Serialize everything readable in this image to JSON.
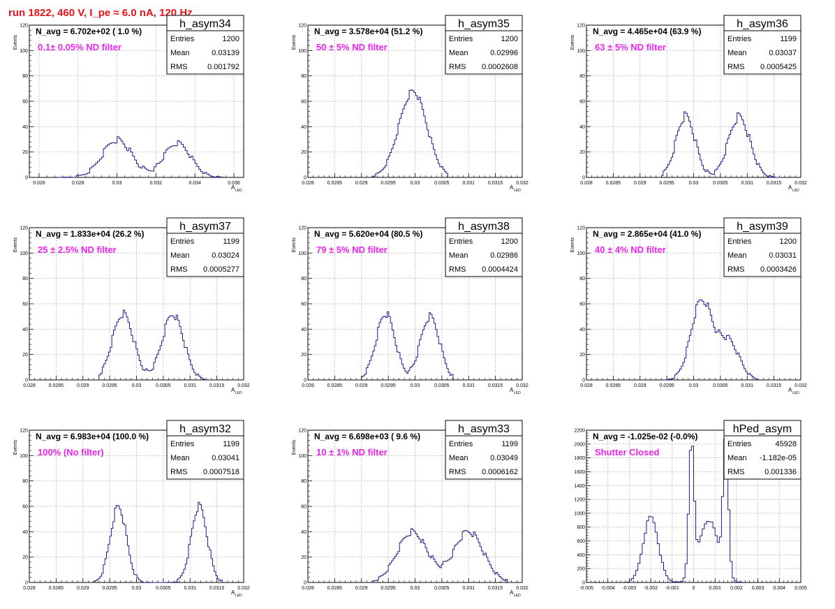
{
  "page": {
    "run_title": "run 1822,   460 V, I_pe ≈ 6.0 nA, 120 Hz"
  },
  "colors": {
    "histogram": "#1c1c8c",
    "title": "#e8121a",
    "filter_label": "#ee22ee",
    "grid": "#9a9a9a",
    "axis": "#000000"
  },
  "chart_data": [
    {
      "type": "histogram",
      "name": "h_asym34",
      "n_avg": "N_avg = 6.702e+02 ( 1.0 %)",
      "filter_label": "0.1± 0.05% ND filter",
      "stats": [
        {
          "label": "Entries",
          "value": "1200"
        },
        {
          "label": "Mean",
          "value": "0.03139"
        },
        {
          "label": "RMS",
          "value": "0.001792"
        }
      ],
      "xlabel": "A",
      "xlabel_sub": "LED",
      "ylabel": "Events",
      "xlim": [
        0.0255,
        0.0365
      ],
      "ylim": [
        0,
        120
      ],
      "x_ticks": [
        "0.026",
        "0.028",
        "0.03",
        "0.032",
        "0.034",
        "0.036"
      ],
      "y_ticks": [
        "0",
        "20",
        "40",
        "60",
        "80",
        "100",
        "120"
      ],
      "grid": true,
      "bin_width": 0.0001,
      "peaks": [
        {
          "center": 0.03,
          "sigma": 0.00075,
          "amp": 30,
          "noise_seed": 1,
          "noise": 6
        },
        {
          "center": 0.0331,
          "sigma": 0.0007,
          "amp": 27,
          "noise_seed": 2,
          "noise": 5
        }
      ],
      "x_range_hist": [
        0.027,
        0.0355
      ]
    },
    {
      "type": "histogram",
      "name": "h_asym35",
      "n_avg": "N_avg = 3.578e+04 (51.2 %)",
      "filter_label": "50 ± 5% ND filter",
      "stats": [
        {
          "label": "Entries",
          "value": "1200"
        },
        {
          "label": "Mean",
          "value": "0.02996"
        },
        {
          "label": "RMS",
          "value": "0.0002608"
        }
      ],
      "xlabel": "A",
      "xlabel_sub": "LED",
      "ylabel": "Events",
      "xlim": [
        0.028,
        0.032
      ],
      "ylim": [
        0,
        120
      ],
      "x_ticks": [
        "0.028",
        "0.0285",
        "0.029",
        "0.0295",
        "0.03",
        "0.0305",
        "0.031",
        "0.0315",
        "0.032"
      ],
      "y_ticks": [
        "0",
        "20",
        "40",
        "60",
        "80",
        "100",
        "120"
      ],
      "grid": true,
      "bin_width": 3e-05,
      "peaks": [
        {
          "center": 0.02996,
          "sigma": 0.00026,
          "amp": 68,
          "noise_seed": 3,
          "noise": 6
        }
      ],
      "x_range_hist": [
        0.0292,
        0.0306
      ]
    },
    {
      "type": "histogram",
      "name": "h_asym36",
      "n_avg": "N_avg = 4.465e+04 (63.9 %)",
      "filter_label": "63 ± 5% ND filter",
      "stats": [
        {
          "label": "Entries",
          "value": "1199"
        },
        {
          "label": "Mean",
          "value": "0.03037"
        },
        {
          "label": "RMS",
          "value": "0.0005425"
        }
      ],
      "xlabel": "A",
      "xlabel_sub": "LED",
      "ylabel": "Events",
      "xlim": [
        0.028,
        0.032
      ],
      "ylim": [
        0,
        120
      ],
      "x_ticks": [
        "0.028",
        "0.0285",
        "0.029",
        "0.0295",
        "0.03",
        "0.0305",
        "0.031",
        "0.0315",
        "0.032"
      ],
      "y_ticks": [
        "0",
        "20",
        "40",
        "60",
        "80",
        "100",
        "120"
      ],
      "grid": true,
      "bin_width": 3e-05,
      "peaks": [
        {
          "center": 0.02985,
          "sigma": 0.00018,
          "amp": 48,
          "noise_seed": 4,
          "noise": 8
        },
        {
          "center": 0.03085,
          "sigma": 0.0002,
          "amp": 48,
          "noise_seed": 5,
          "noise": 8
        }
      ],
      "x_range_hist": [
        0.0294,
        0.0316
      ]
    },
    {
      "type": "histogram",
      "name": "h_asym37",
      "n_avg": "N_avg = 1.833e+04 (26.2 %)",
      "filter_label": "25 ± 2.5% ND filter",
      "stats": [
        {
          "label": "Entries",
          "value": "1199"
        },
        {
          "label": "Mean",
          "value": "0.03024"
        },
        {
          "label": "RMS",
          "value": "0.0005277"
        }
      ],
      "xlabel": "A",
      "xlabel_sub": "LED",
      "ylabel": "Events",
      "xlim": [
        0.028,
        0.032
      ],
      "ylim": [
        0,
        120
      ],
      "x_ticks": [
        "0.028",
        "0.0285",
        "0.029",
        "0.0295",
        "0.03",
        "0.0305",
        "0.031",
        "0.0315",
        "0.032"
      ],
      "y_ticks": [
        "0",
        "20",
        "40",
        "60",
        "80",
        "100",
        "120"
      ],
      "grid": true,
      "bin_width": 3e-05,
      "peaks": [
        {
          "center": 0.02975,
          "sigma": 0.0002,
          "amp": 52,
          "noise_seed": 6,
          "noise": 7
        },
        {
          "center": 0.03068,
          "sigma": 0.0002,
          "amp": 52,
          "noise_seed": 7,
          "noise": 7
        }
      ],
      "x_range_hist": [
        0.0293,
        0.0313
      ]
    },
    {
      "type": "histogram",
      "name": "h_asym38",
      "n_avg": "N_avg = 5.620e+04 (80.5 %)",
      "filter_label": "79 ± 5% ND filter",
      "stats": [
        {
          "label": "Entries",
          "value": "1200"
        },
        {
          "label": "Mean",
          "value": "0.02986"
        },
        {
          "label": "RMS",
          "value": "0.0004424"
        }
      ],
      "xlabel": "A",
      "xlabel_sub": "LED",
      "ylabel": "Events",
      "xlim": [
        0.028,
        0.032
      ],
      "ylim": [
        0,
        120
      ],
      "x_ticks": [
        "0.028",
        "0.0285",
        "0.029",
        "0.0295",
        "0.03",
        "0.0305",
        "0.031",
        "0.0315",
        "0.032"
      ],
      "y_ticks": [
        "0",
        "20",
        "40",
        "60",
        "80",
        "100",
        "120"
      ],
      "grid": true,
      "bin_width": 3e-05,
      "peaks": [
        {
          "center": 0.02945,
          "sigma": 0.00018,
          "amp": 52,
          "noise_seed": 8,
          "noise": 7
        },
        {
          "center": 0.03028,
          "sigma": 0.00018,
          "amp": 50,
          "noise_seed": 9,
          "noise": 7
        }
      ],
      "x_range_hist": [
        0.029,
        0.0307
      ]
    },
    {
      "type": "histogram",
      "name": "h_asym39",
      "n_avg": "N_avg = 2.865e+04 (41.0 %)",
      "filter_label": "40 ± 4% ND filter",
      "stats": [
        {
          "label": "Entries",
          "value": "1200"
        },
        {
          "label": "Mean",
          "value": "0.03031"
        },
        {
          "label": "RMS",
          "value": "0.0003426"
        }
      ],
      "xlabel": "A",
      "xlabel_sub": "LED",
      "ylabel": "Events",
      "xlim": [
        0.028,
        0.032
      ],
      "ylim": [
        0,
        120
      ],
      "x_ticks": [
        "0.028",
        "0.0285",
        "0.029",
        "0.0295",
        "0.03",
        "0.0305",
        "0.031",
        "0.0315",
        "0.032"
      ],
      "y_ticks": [
        "0",
        "20",
        "40",
        "60",
        "80",
        "100",
        "120"
      ],
      "grid": true,
      "bin_width": 3e-05,
      "peaks": [
        {
          "center": 0.03015,
          "sigma": 0.0002,
          "amp": 62,
          "noise_seed": 10,
          "noise": 7
        },
        {
          "center": 0.03065,
          "sigma": 0.0002,
          "amp": 30,
          "noise_seed": 11,
          "noise": 5
        }
      ],
      "x_range_hist": [
        0.0295,
        0.0312
      ]
    },
    {
      "type": "histogram",
      "name": "h_asym32",
      "n_avg": "N_avg = 6.983e+04 (100.0 %)",
      "filter_label": "100% (No filter)",
      "stats": [
        {
          "label": "Entries",
          "value": "1199"
        },
        {
          "label": "Mean",
          "value": "0.03041"
        },
        {
          "label": "RMS",
          "value": "0.0007518"
        }
      ],
      "xlabel": "A",
      "xlabel_sub": "LED",
      "ylabel": "Events",
      "xlim": [
        0.028,
        0.032
      ],
      "ylim": [
        0,
        120
      ],
      "x_ticks": [
        "0.028",
        "0.0285",
        "0.029",
        "0.0295",
        "0.03",
        "0.0305",
        "0.031",
        "0.0315",
        "0.032"
      ],
      "y_ticks": [
        "0",
        "20",
        "40",
        "60",
        "80",
        "100",
        "120"
      ],
      "grid": true,
      "bin_width": 3e-05,
      "peaks": [
        {
          "center": 0.02966,
          "sigma": 0.00015,
          "amp": 60,
          "noise_seed": 12,
          "noise": 7
        },
        {
          "center": 0.03117,
          "sigma": 0.00015,
          "amp": 60,
          "noise_seed": 13,
          "noise": 7
        }
      ],
      "x_range_hist": [
        0.0292,
        0.0316
      ]
    },
    {
      "type": "histogram",
      "name": "h_asym33",
      "n_avg": "N_avg = 6.698e+03 ( 9.6 %)",
      "filter_label": "10 ± 1% ND filter",
      "stats": [
        {
          "label": "Entries",
          "value": "1199"
        },
        {
          "label": "Mean",
          "value": "0.03049"
        },
        {
          "label": "RMS",
          "value": "0.0006162"
        }
      ],
      "xlabel": "A",
      "xlabel_sub": "LED",
      "ylabel": "Events",
      "xlim": [
        0.028,
        0.032
      ],
      "ylim": [
        0,
        120
      ],
      "x_ticks": [
        "0.028",
        "0.0285",
        "0.029",
        "0.0295",
        "0.03",
        "0.0305",
        "0.031",
        "0.0315",
        "0.032"
      ],
      "y_ticks": [
        "0",
        "20",
        "40",
        "60",
        "80",
        "100",
        "120"
      ],
      "grid": true,
      "bin_width": 3e-05,
      "peaks": [
        {
          "center": 0.02995,
          "sigma": 0.00028,
          "amp": 40,
          "noise_seed": 14,
          "noise": 6
        },
        {
          "center": 0.031,
          "sigma": 0.00028,
          "amp": 40,
          "noise_seed": 15,
          "noise": 6
        }
      ],
      "x_range_hist": [
        0.0292,
        0.0317
      ]
    },
    {
      "type": "histogram",
      "name": "hPed_asym",
      "n_avg": "N_avg = -1.025e-02 (-0.0%)",
      "filter_label": "Shutter Closed",
      "stats": [
        {
          "label": "Entries",
          "value": "45928"
        },
        {
          "label": "Mean",
          "value": "-1.182e-05"
        },
        {
          "label": "RMS",
          "value": "0.001336"
        }
      ],
      "xlabel": "",
      "xlabel_sub": "",
      "ylabel": "",
      "xlim": [
        -0.005,
        0.005
      ],
      "ylim": [
        0,
        2200
      ],
      "x_ticks": [
        "-0.005",
        "-0.004",
        "-0.003",
        "-0.002",
        "-0.001",
        "0",
        "0.001",
        "0.002",
        "0.003",
        "0.004",
        "0.005"
      ],
      "y_ticks": [
        "0",
        "200",
        "400",
        "600",
        "800",
        "1000",
        "1200",
        "1400",
        "1600",
        "1800",
        "2000",
        "2200"
      ],
      "grid": true,
      "bin_width": 0.0001,
      "peaks": [
        {
          "center": -0.002,
          "sigma": 0.00035,
          "amp": 950,
          "noise_seed": 16,
          "noise": 60
        },
        {
          "center": -0.0001,
          "sigma": 0.00012,
          "amp": 1900,
          "noise_seed": 17,
          "noise": 60
        },
        {
          "center": 0.0015,
          "sigma": 0.00012,
          "amp": 2050,
          "noise_seed": 18,
          "noise": 60
        },
        {
          "center": 0.0007,
          "sigma": 0.00045,
          "amp": 900,
          "noise_seed": 19,
          "noise": 50
        }
      ],
      "x_range_hist": [
        -0.0031,
        0.0023
      ]
    }
  ]
}
